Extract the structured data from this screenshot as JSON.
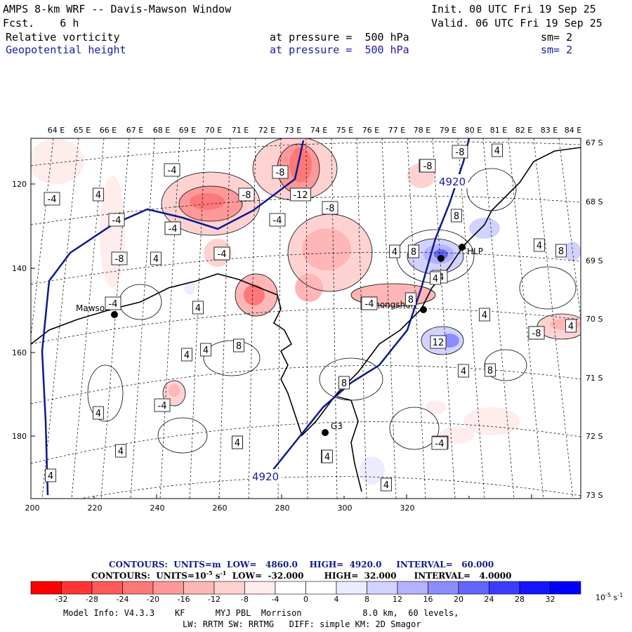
{
  "header": {
    "title": "AMPS 8-km WRF -- Davis-Mawson Window",
    "fcst": "Fcst.    6 h",
    "init": "Init. 00 UTC Fri 19 Sep 25",
    "valid": "Valid. 06 UTC Fri 19 Sep 25",
    "field1": {
      "name": "Relative vorticity",
      "pressure": "at pressure =  500 hPa",
      "sm": "sm= 2"
    },
    "field2": {
      "name": "Geopotential height",
      "pressure": "at pressure =  500 hPa",
      "sm": "sm= 2"
    }
  },
  "map": {
    "lon_labels": [
      "64 E",
      "65 E",
      "66 E",
      "67 E",
      "68 E",
      "69 E",
      "70 E",
      "71 E",
      "72 E",
      "73 E",
      "74 E",
      "75 E",
      "76 E",
      "77 E",
      "78 E",
      "79 E",
      "80 E",
      "81 E",
      "82 E",
      "83 E",
      "84 E"
    ],
    "lat_labels": [
      "67 S",
      "68 S",
      "69 S",
      "70 S",
      "71 S",
      "72 S",
      "73 S"
    ],
    "x_ticks": [
      "200",
      "220",
      "240",
      "260",
      "280",
      "300",
      "320"
    ],
    "y_ticks": [
      "120",
      "140",
      "160",
      "180"
    ],
    "stations": [
      {
        "name": "Mawson"
      },
      {
        "name": "Zhongshan"
      },
      {
        "name": "G3"
      },
      {
        "name": "HLP"
      }
    ],
    "height_labels": [
      "4920",
      "4920"
    ],
    "vorticity_labels": [
      "-4",
      "4",
      "-4",
      "-4",
      "-8",
      "-4",
      "-8",
      "-12",
      "-8",
      "-8",
      "-4",
      "-4",
      "4",
      "-4",
      "4",
      "8",
      "4",
      "4",
      "8",
      "4",
      "-4",
      "4",
      "4",
      "4",
      "4",
      "-4",
      "8",
      "-8",
      "-8",
      "8",
      "4",
      "4",
      "8",
      "-4",
      "4",
      "12",
      "-4",
      "8",
      "4",
      "4",
      "-8",
      "4",
      "8",
      "4",
      "-4",
      "-8",
      "-8",
      "4",
      "-4",
      "4",
      "4",
      "-4",
      "-4"
    ]
  },
  "legend": {
    "contour1": {
      "label": "CONTOURS:",
      "units": "UNITS=m",
      "low": "LOW=   4860.0",
      "high": "HIGH=  4920.0",
      "interval": "INTERVAL=   60.000"
    },
    "contour2": {
      "label": "CONTOURS:",
      "units": "UNITS=10",
      "units_exp": "-5",
      "units_tail": " s",
      "units_tail_exp": "-1",
      "low": "LOW=  -32.000",
      "high": "HIGH=  32.000",
      "interval": "INTERVAL=   4.0000"
    },
    "colorbar_labels": [
      "-32",
      "-28",
      "-24",
      "-20",
      "-16",
      "-12",
      "-8",
      "-4",
      "0",
      "4",
      "8",
      "12",
      "16",
      "20",
      "24",
      "28",
      "32"
    ],
    "colorbar_unit": "10",
    "colorbar_unit_exp": "-5",
    "colorbar_unit_tail": " s",
    "colorbar_unit_tail_exp": "-1",
    "colors": [
      "#ff0000",
      "#ff3535",
      "#ff5a5a",
      "#ff7878",
      "#ff9999",
      "#ffb6b6",
      "#ffd2d2",
      "#ffecec",
      "#ffffff",
      "#ffffff",
      "#ececff",
      "#d2d2ff",
      "#b2b2ff",
      "#8c8cff",
      "#6464ff",
      "#3c3cff",
      "#1515ff"
    ]
  },
  "model_info": {
    "line1": "Model Info: V4.3.3    KF      MYJ PBL  Morrison            8.0 km,  60 levels,",
    "line2": "LW: RRTM SW: RRTMG   DIFF: simple KM: 2D Smagor"
  }
}
